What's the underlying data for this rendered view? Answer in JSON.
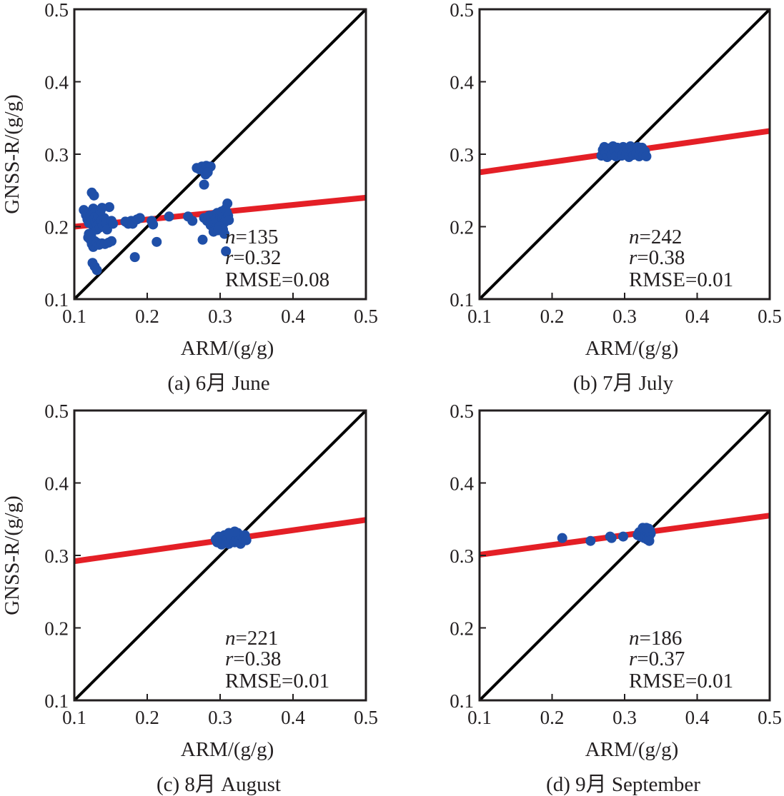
{
  "chart_data": [
    {
      "type": "scatter",
      "panel": "a",
      "caption": "(a) 6月 June",
      "xlabel": "ARM/(g/g)",
      "ylabel": "GNSS-R/(g/g)",
      "xlim": [
        0.1,
        0.5
      ],
      "ylim": [
        0.1,
        0.5
      ],
      "xticks": [
        "0.1",
        "0.2",
        "0.3",
        "0.4",
        "0.5"
      ],
      "yticks": [
        "0.1",
        "0.2",
        "0.3",
        "0.4",
        "0.5"
      ],
      "stats": {
        "n_label": "n",
        "n_value": "=135",
        "r_label": "r",
        "r_value": "=0.32",
        "rmse": "RMSE=0.08"
      },
      "one_to_one": [
        [
          0.1,
          0.1
        ],
        [
          0.5,
          0.5
        ]
      ],
      "fit_line": [
        [
          0.1,
          0.2
        ],
        [
          0.5,
          0.24
        ]
      ],
      "points": [
        [
          0.113,
          0.223
        ],
        [
          0.116,
          0.216
        ],
        [
          0.118,
          0.21
        ],
        [
          0.12,
          0.205
        ],
        [
          0.121,
          0.22
        ],
        [
          0.122,
          0.215
        ],
        [
          0.123,
          0.212
        ],
        [
          0.124,
          0.208
        ],
        [
          0.125,
          0.202
        ],
        [
          0.126,
          0.225
        ],
        [
          0.127,
          0.218
        ],
        [
          0.128,
          0.213
        ],
        [
          0.129,
          0.206
        ],
        [
          0.13,
          0.2
        ],
        [
          0.131,
          0.196
        ],
        [
          0.132,
          0.21
        ],
        [
          0.133,
          0.214
        ],
        [
          0.134,
          0.204
        ],
        [
          0.135,
          0.199
        ],
        [
          0.137,
          0.208
        ],
        [
          0.139,
          0.202
        ],
        [
          0.141,
          0.212
        ],
        [
          0.143,
          0.205
        ],
        [
          0.145,
          0.196
        ],
        [
          0.148,
          0.227
        ],
        [
          0.151,
          0.208
        ],
        [
          0.153,
          0.204
        ],
        [
          0.136,
          0.222
        ],
        [
          0.138,
          0.226
        ],
        [
          0.124,
          0.247
        ],
        [
          0.127,
          0.243
        ],
        [
          0.119,
          0.185
        ],
        [
          0.122,
          0.182
        ],
        [
          0.124,
          0.176
        ],
        [
          0.126,
          0.172
        ],
        [
          0.128,
          0.18
        ],
        [
          0.131,
          0.178
        ],
        [
          0.134,
          0.175
        ],
        [
          0.138,
          0.177
        ],
        [
          0.142,
          0.176
        ],
        [
          0.147,
          0.178
        ],
        [
          0.151,
          0.18
        ],
        [
          0.125,
          0.15
        ],
        [
          0.128,
          0.145
        ],
        [
          0.131,
          0.14
        ],
        [
          0.12,
          0.19
        ],
        [
          0.123,
          0.188
        ],
        [
          0.17,
          0.207
        ],
        [
          0.174,
          0.204
        ],
        [
          0.178,
          0.208
        ],
        [
          0.18,
          0.204
        ],
        [
          0.186,
          0.21
        ],
        [
          0.19,
          0.212
        ],
        [
          0.206,
          0.208
        ],
        [
          0.208,
          0.203
        ],
        [
          0.213,
          0.179
        ],
        [
          0.183,
          0.158
        ],
        [
          0.23,
          0.214
        ],
        [
          0.256,
          0.214
        ],
        [
          0.262,
          0.208
        ],
        [
          0.268,
          0.281
        ],
        [
          0.272,
          0.279
        ],
        [
          0.275,
          0.283
        ],
        [
          0.278,
          0.277
        ],
        [
          0.281,
          0.284
        ],
        [
          0.284,
          0.28
        ],
        [
          0.287,
          0.283
        ],
        [
          0.28,
          0.272
        ],
        [
          0.283,
          0.275
        ],
        [
          0.278,
          0.258
        ],
        [
          0.278,
          0.212
        ],
        [
          0.282,
          0.208
        ],
        [
          0.285,
          0.215
        ],
        [
          0.288,
          0.21
        ],
        [
          0.29,
          0.205
        ],
        [
          0.292,
          0.216
        ],
        [
          0.294,
          0.212
        ],
        [
          0.296,
          0.219
        ],
        [
          0.298,
          0.208
        ],
        [
          0.3,
          0.214
        ],
        [
          0.302,
          0.221
        ],
        [
          0.303,
          0.211
        ],
        [
          0.305,
          0.217
        ],
        [
          0.306,
          0.206
        ],
        [
          0.307,
          0.224
        ],
        [
          0.308,
          0.213
        ],
        [
          0.309,
          0.22
        ],
        [
          0.31,
          0.232
        ],
        [
          0.311,
          0.215
        ],
        [
          0.312,
          0.209
        ],
        [
          0.287,
          0.202
        ],
        [
          0.293,
          0.198
        ],
        [
          0.299,
          0.2
        ],
        [
          0.304,
          0.196
        ],
        [
          0.291,
          0.193
        ],
        [
          0.297,
          0.195
        ],
        [
          0.306,
          0.19
        ],
        [
          0.276,
          0.182
        ],
        [
          0.308,
          0.166
        ]
      ]
    },
    {
      "type": "scatter",
      "panel": "b",
      "caption": "(b) 7月 July",
      "xlabel": "ARM/(g/g)",
      "ylabel": "",
      "xlim": [
        0.1,
        0.5
      ],
      "ylim": [
        0.1,
        0.5
      ],
      "xticks": [
        "0.1",
        "0.2",
        "0.3",
        "0.4",
        "0.5"
      ],
      "yticks": [
        "0.1",
        "0.2",
        "0.3",
        "0.4",
        "0.5"
      ],
      "stats": {
        "n_label": "n",
        "n_value": "=242",
        "r_label": "r",
        "r_value": "=0.38",
        "rmse": "RMSE=0.01"
      },
      "one_to_one": [
        [
          0.1,
          0.1
        ],
        [
          0.5,
          0.5
        ]
      ],
      "fit_line": [
        [
          0.1,
          0.275
        ],
        [
          0.5,
          0.332
        ]
      ],
      "points": [
        [
          0.268,
          0.298
        ],
        [
          0.27,
          0.306
        ],
        [
          0.272,
          0.31
        ],
        [
          0.274,
          0.302
        ],
        [
          0.276,
          0.296
        ],
        [
          0.278,
          0.308
        ],
        [
          0.28,
          0.303
        ],
        [
          0.282,
          0.299
        ],
        [
          0.284,
          0.311
        ],
        [
          0.286,
          0.305
        ],
        [
          0.288,
          0.297
        ],
        [
          0.29,
          0.309
        ],
        [
          0.292,
          0.302
        ],
        [
          0.294,
          0.306
        ],
        [
          0.296,
          0.298
        ],
        [
          0.298,
          0.31
        ],
        [
          0.3,
          0.304
        ],
        [
          0.302,
          0.3
        ],
        [
          0.304,
          0.308
        ],
        [
          0.306,
          0.296
        ],
        [
          0.308,
          0.311
        ],
        [
          0.31,
          0.303
        ],
        [
          0.312,
          0.299
        ],
        [
          0.314,
          0.307
        ],
        [
          0.316,
          0.301
        ],
        [
          0.318,
          0.31
        ],
        [
          0.32,
          0.297
        ],
        [
          0.322,
          0.305
        ],
        [
          0.324,
          0.309
        ],
        [
          0.326,
          0.299
        ],
        [
          0.328,
          0.304
        ],
        [
          0.33,
          0.297
        ]
      ]
    },
    {
      "type": "scatter",
      "panel": "c",
      "caption": "(c) 8月 August",
      "xlabel": "ARM/(g/g)",
      "ylabel": "GNSS-R/(g/g)",
      "xlim": [
        0.1,
        0.5
      ],
      "ylim": [
        0.1,
        0.5
      ],
      "xticks": [
        "0.1",
        "0.2",
        "0.3",
        "0.4",
        "0.5"
      ],
      "yticks": [
        "0.1",
        "0.2",
        "0.3",
        "0.4",
        "0.5"
      ],
      "stats": {
        "n_label": "n",
        "n_value": "=221",
        "r_label": "r",
        "r_value": "=0.38",
        "rmse": "RMSE=0.01"
      },
      "one_to_one": [
        [
          0.1,
          0.1
        ],
        [
          0.5,
          0.5
        ]
      ],
      "fit_line": [
        [
          0.1,
          0.292
        ],
        [
          0.5,
          0.349
        ]
      ],
      "points": [
        [
          0.294,
          0.322
        ],
        [
          0.296,
          0.318
        ],
        [
          0.298,
          0.326
        ],
        [
          0.3,
          0.32
        ],
        [
          0.302,
          0.315
        ],
        [
          0.304,
          0.324
        ],
        [
          0.306,
          0.328
        ],
        [
          0.308,
          0.319
        ],
        [
          0.31,
          0.323
        ],
        [
          0.312,
          0.316
        ],
        [
          0.314,
          0.327
        ],
        [
          0.316,
          0.321
        ],
        [
          0.318,
          0.33
        ],
        [
          0.32,
          0.318
        ],
        [
          0.322,
          0.325
        ],
        [
          0.324,
          0.331
        ],
        [
          0.326,
          0.32
        ],
        [
          0.328,
          0.316
        ],
        [
          0.33,
          0.327
        ],
        [
          0.332,
          0.322
        ],
        [
          0.334,
          0.328
        ],
        [
          0.336,
          0.321
        ],
        [
          0.32,
          0.333
        ],
        [
          0.312,
          0.331
        ]
      ]
    },
    {
      "type": "scatter",
      "panel": "d",
      "caption": "(d) 9月 September",
      "xlabel": "ARM/(g/g)",
      "ylabel": "",
      "xlim": [
        0.1,
        0.5
      ],
      "ylim": [
        0.1,
        0.5
      ],
      "xticks": [
        "0.1",
        "0.2",
        "0.3",
        "0.4",
        "0.5"
      ],
      "yticks": [
        "0.1",
        "0.2",
        "0.3",
        "0.4",
        "0.5"
      ],
      "stats": {
        "n_label": "n",
        "n_value": "=186",
        "r_label": "r",
        "r_value": "=0.37",
        "rmse": "RMSE=0.01"
      },
      "one_to_one": [
        [
          0.1,
          0.1
        ],
        [
          0.5,
          0.5
        ]
      ],
      "fit_line": [
        [
          0.1,
          0.301
        ],
        [
          0.5,
          0.355
        ]
      ],
      "points": [
        [
          0.214,
          0.324
        ],
        [
          0.253,
          0.32
        ],
        [
          0.28,
          0.326
        ],
        [
          0.282,
          0.324
        ],
        [
          0.298,
          0.326
        ],
        [
          0.318,
          0.328
        ],
        [
          0.32,
          0.332
        ],
        [
          0.322,
          0.326
        ],
        [
          0.324,
          0.334
        ],
        [
          0.326,
          0.33
        ],
        [
          0.327,
          0.324
        ],
        [
          0.328,
          0.336
        ],
        [
          0.329,
          0.328
        ],
        [
          0.33,
          0.333
        ],
        [
          0.331,
          0.322
        ],
        [
          0.332,
          0.331
        ],
        [
          0.333,
          0.337
        ],
        [
          0.334,
          0.327
        ],
        [
          0.335,
          0.334
        ],
        [
          0.336,
          0.33
        ],
        [
          0.334,
          0.32
        ],
        [
          0.325,
          0.338
        ],
        [
          0.33,
          0.338
        ]
      ]
    }
  ],
  "colors": {
    "points": "#1f4fa8",
    "fit_line": "#e41f26",
    "one_to_one": "#000000",
    "axes": "#231f20"
  }
}
